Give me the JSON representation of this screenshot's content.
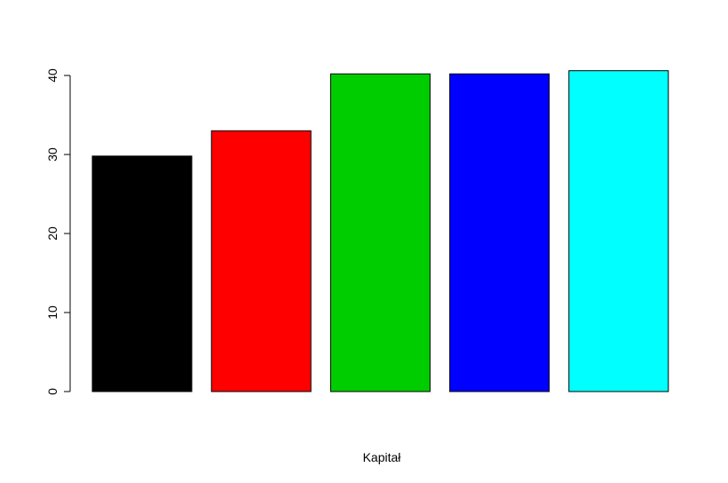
{
  "chart_data": {
    "type": "bar",
    "xlabel": "Kapitał",
    "ylabel": "",
    "ylim": [
      0,
      40
    ],
    "yticks": [
      0,
      10,
      20,
      30,
      40
    ],
    "grid": false,
    "values": [
      29.8,
      33.0,
      40.2,
      40.2,
      40.6
    ],
    "colors": [
      "#000000",
      "#ff0000",
      "#00cd00",
      "#0000ff",
      "#00ffff"
    ]
  }
}
